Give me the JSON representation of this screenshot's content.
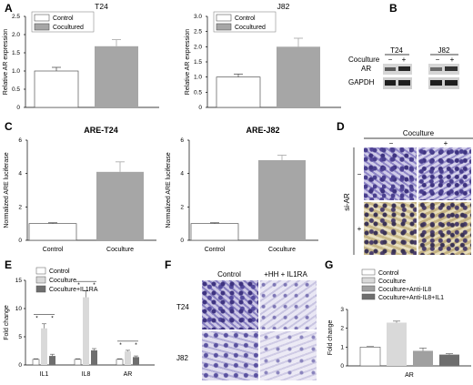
{
  "panels": {
    "A": {
      "label": "A"
    },
    "B": {
      "label": "B"
    },
    "C": {
      "label": "C"
    },
    "D": {
      "label": "D"
    },
    "E": {
      "label": "E"
    },
    "F": {
      "label": "F"
    },
    "G": {
      "label": "G"
    }
  },
  "panel_B": {
    "cell_lines": [
      "T24",
      "J82"
    ],
    "coculture_label": "Coculture",
    "minus": "−",
    "plus": "+",
    "rows": [
      "AR",
      "GAPDH"
    ]
  },
  "panel_D": {
    "top_label": "Coculture",
    "minus": "−",
    "plus": "+",
    "side_label": "si-AR",
    "side_minus": "−",
    "side_plus": "+"
  },
  "panel_F": {
    "col_labels": [
      "Control",
      "+HH + IL1RA"
    ],
    "row_labels": [
      "T24",
      "J82"
    ]
  },
  "colors": {
    "white_bar": "#ffffff",
    "gray_bar": "#a6a6a6",
    "light_bar": "#d9d9d9",
    "mid_bar": "#a0a0a0",
    "dark_bar": "#6e6e6e"
  },
  "chart_data": [
    {
      "id": "A1",
      "type": "bar",
      "title": "T24",
      "categories": [
        "Control",
        "Cocultured"
      ],
      "values": [
        1.0,
        1.68
      ],
      "errors": [
        0.1,
        0.18
      ],
      "ylabel": "Relative AR expression",
      "ylim": [
        0,
        2.5
      ],
      "yticks": [
        "0",
        "0.5",
        "1.0",
        "1.5",
        "2.0",
        "2.5"
      ],
      "legend": [
        "Control",
        "Cocultured"
      ],
      "legend_position": "top-left"
    },
    {
      "id": "A2",
      "type": "bar",
      "title": "J82",
      "categories": [
        "Control",
        "Cocultured"
      ],
      "values": [
        1.0,
        2.0
      ],
      "errors": [
        0.1,
        0.28
      ],
      "ylabel": "Relative AR expression",
      "ylim": [
        0,
        3.0
      ],
      "yticks": [
        "0",
        "0.5",
        "1.0",
        "1.5",
        "2.0",
        "2.5",
        "3.0"
      ],
      "legend": [
        "Control",
        "Cocultured"
      ],
      "legend_position": "top-left"
    },
    {
      "id": "C1",
      "type": "bar",
      "title": "ARE-T24",
      "categories": [
        "Control",
        "Coculture"
      ],
      "values": [
        1.0,
        4.1
      ],
      "errors": [
        0.05,
        0.6
      ],
      "ylabel": "Normalized ARE luciferase",
      "ylim": [
        0,
        6
      ],
      "yticks": [
        "0",
        "2",
        "4",
        "6"
      ]
    },
    {
      "id": "C2",
      "type": "bar",
      "title": "ARE-J82",
      "categories": [
        "Control",
        "Coculture"
      ],
      "values": [
        1.0,
        4.8
      ],
      "errors": [
        0.05,
        0.3
      ],
      "ylabel": "Normalized ARE luciferase",
      "ylim": [
        0,
        6
      ],
      "yticks": [
        "0",
        "2",
        "4",
        "6"
      ]
    },
    {
      "id": "E",
      "type": "bar",
      "categories": [
        "IL1",
        "IL8",
        "AR"
      ],
      "series": [
        {
          "name": "Control",
          "values": [
            1.0,
            1.0,
            1.0
          ],
          "errors": [
            0.1,
            0.1,
            0.1
          ]
        },
        {
          "name": "Coculture",
          "values": [
            6.5,
            12.0,
            2.4
          ],
          "errors": [
            0.8,
            1.2,
            0.2
          ]
        },
        {
          "name": "Coculture+IL1RA",
          "values": [
            1.6,
            2.6,
            1.4
          ],
          "errors": [
            0.3,
            0.3,
            0.2
          ]
        }
      ],
      "ylabel": "Fold change",
      "ylim": [
        0,
        15
      ],
      "yticks": [
        "0",
        "5",
        "10",
        "15"
      ],
      "star": "*",
      "legend_position": "top-left"
    },
    {
      "id": "G",
      "type": "bar",
      "categories": [
        "AR"
      ],
      "series": [
        {
          "name": "Control",
          "values": [
            1.0
          ],
          "errors": [
            0.03
          ]
        },
        {
          "name": "Coculture",
          "values": [
            2.3
          ],
          "errors": [
            0.08
          ]
        },
        {
          "name": "Coculture+Anti-IL8",
          "values": [
            0.8
          ],
          "errors": [
            0.15
          ]
        },
        {
          "name": "Coculture+Anti-IL8+IL1",
          "values": [
            0.6
          ],
          "errors": [
            0.05
          ]
        }
      ],
      "ylabel": "Fold change",
      "ylim": [
        0,
        3
      ],
      "yticks": [
        "0",
        "1",
        "2",
        "3"
      ],
      "legend_position": "top-left"
    }
  ]
}
